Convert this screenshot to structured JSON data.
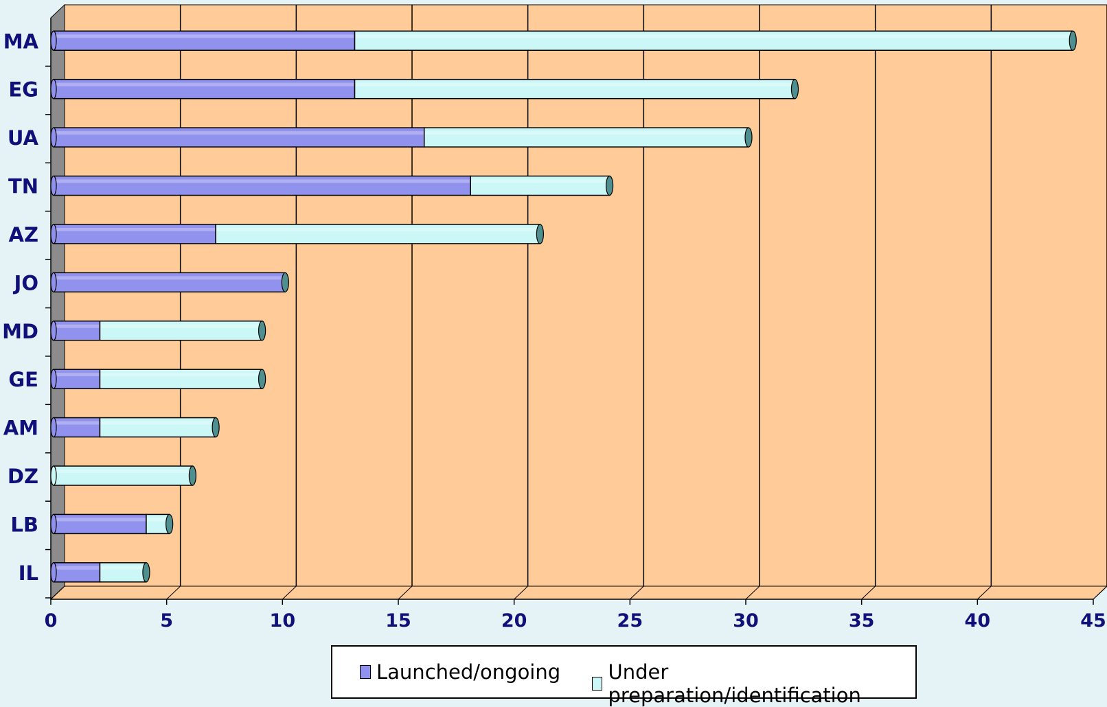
{
  "chart_data": {
    "type": "bar",
    "orientation": "horizontal",
    "stacked": true,
    "categories": [
      "IL",
      "LB",
      "DZ",
      "AM",
      "GE",
      "MD",
      "JO",
      "AZ",
      "TN",
      "UA",
      "EG",
      "MA"
    ],
    "series": [
      {
        "name": "Launched/ongoing",
        "color": "#9191ee",
        "values": [
          2,
          4,
          0,
          2,
          2,
          2,
          10,
          7,
          18,
          16,
          13,
          13
        ]
      },
      {
        "name": "Under preparation/identification",
        "color": "#ccf7f7",
        "values": [
          2,
          1,
          6,
          5,
          7,
          7,
          0,
          14,
          6,
          14,
          19,
          31
        ]
      }
    ],
    "xlim": [
      0,
      45
    ],
    "xticks": [
      "0",
      "5",
      "10",
      "15",
      "20",
      "25",
      "30",
      "35",
      "40",
      "45"
    ],
    "grid": true,
    "legend_position": "bottom",
    "plot_background": "#ffcc99",
    "background": "#e6f3f6"
  }
}
